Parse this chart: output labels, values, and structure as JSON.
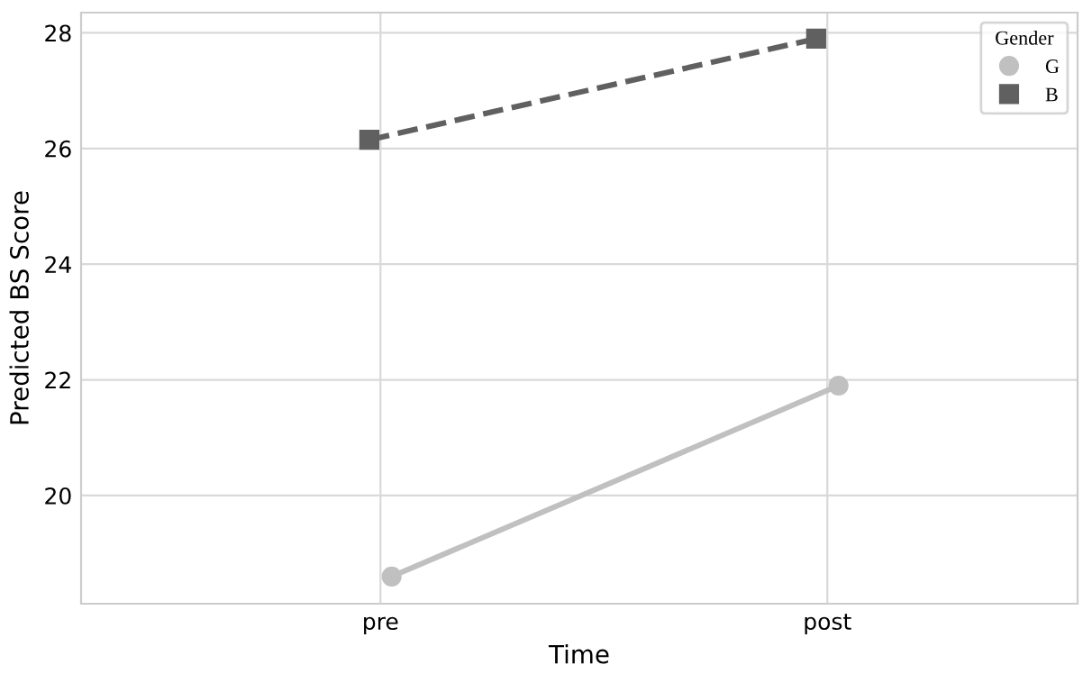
{
  "chart_data": {
    "type": "line",
    "xlabel": "Time",
    "ylabel": "Predicted BS Score",
    "legend_title": "Gender",
    "categories": [
      "pre",
      "post"
    ],
    "series": [
      {
        "name": "G",
        "color": "#c0c0c0",
        "values": [
          18.6,
          21.9
        ],
        "marker": "circle",
        "line_style": "solid"
      },
      {
        "name": "B",
        "color": "#606060",
        "values": [
          26.15,
          27.9
        ],
        "marker": "square",
        "line_style": "dashed"
      }
    ],
    "ylim": [
      18.13,
      28.35
    ],
    "yticks": [
      20,
      22,
      24,
      26,
      28
    ],
    "grid": true,
    "legend": "top right"
  }
}
